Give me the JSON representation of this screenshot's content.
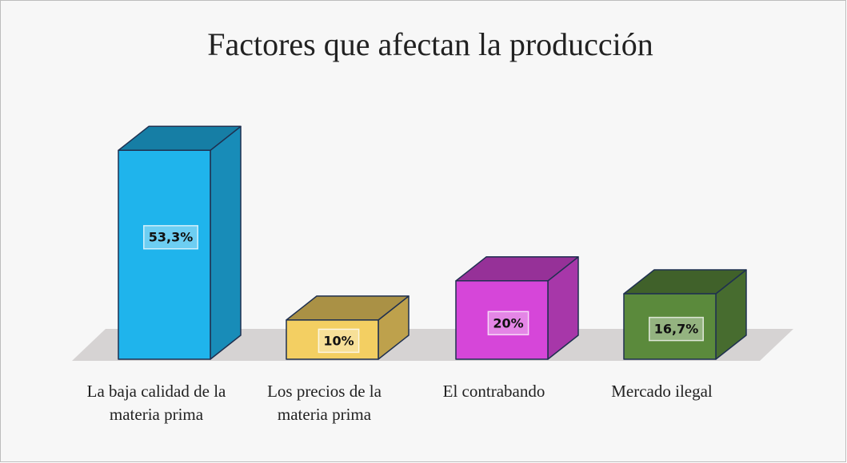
{
  "chart_data": {
    "type": "bar3d",
    "title": "Factores que afectan la producción",
    "categories": [
      "La baja calidad de la materia prima",
      "Los precios de la materia prima",
      "El contrabando",
      "Mercado ilegal"
    ],
    "values": [
      53.3,
      10,
      20,
      16.7
    ],
    "value_labels": [
      "53,3%",
      "10%",
      "20%",
      "16,7%"
    ],
    "colors": [
      "#1fb4ec",
      "#f3cf62",
      "#d646d9",
      "#5b8a3c"
    ]
  }
}
